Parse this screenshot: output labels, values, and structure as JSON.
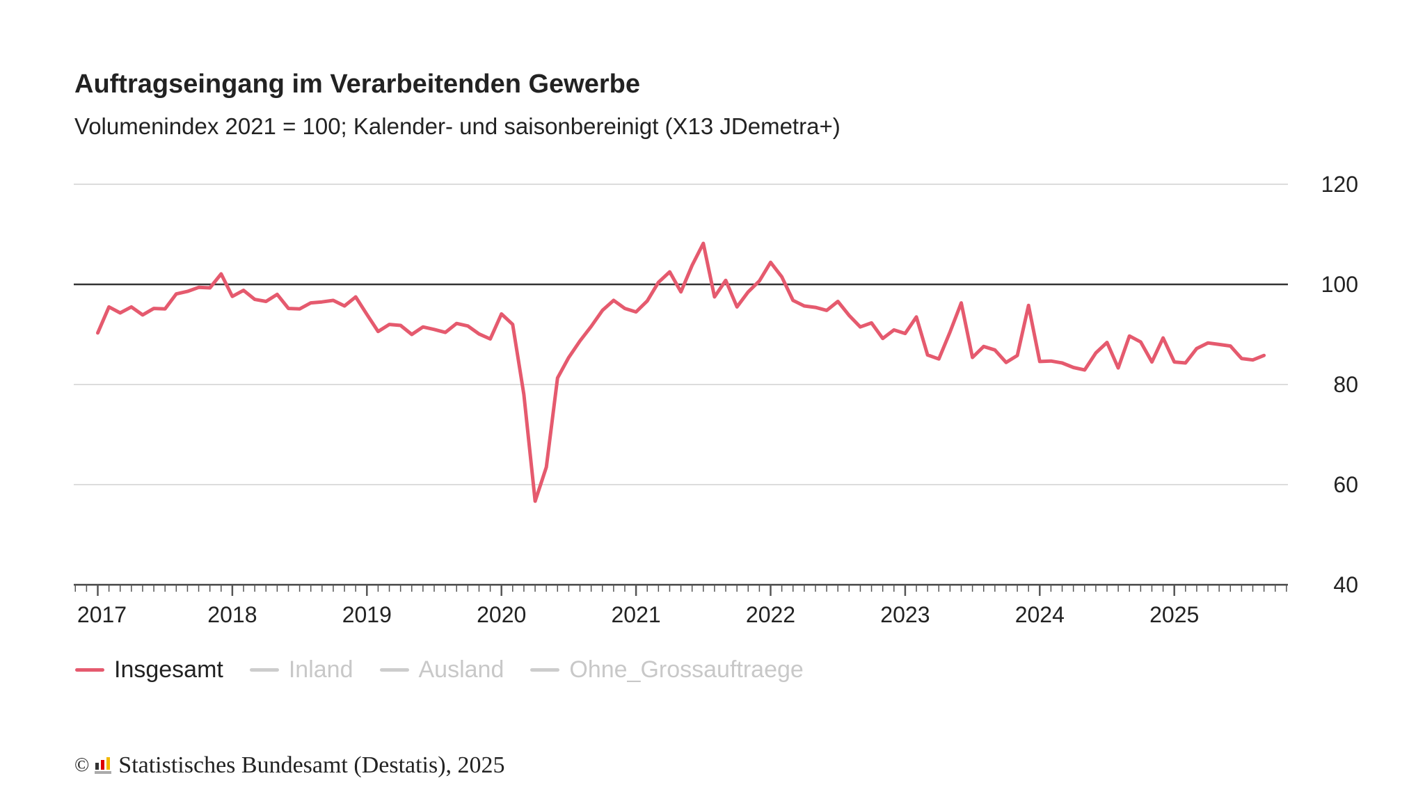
{
  "chart_data": {
    "type": "line",
    "title": "Auftragseingang im Verarbeitenden Gewerbe",
    "subtitle": "Volumenindex 2021 = 100; Kalender- und saisonbereinigt (X13 JDemetra+)",
    "xlabel": "",
    "ylabel": "",
    "ylim": [
      40,
      120
    ],
    "yticks": [
      "120",
      "100",
      "80",
      "60",
      "40"
    ],
    "y_axis_position": "right",
    "xticks": [
      "2017",
      "2018",
      "2019",
      "2020",
      "2021",
      "2022",
      "2023",
      "2024",
      "2025"
    ],
    "x_start": "2017-01",
    "x_frequency": "monthly",
    "reference_line": 100,
    "grid": true,
    "legend_position": "bottom-left",
    "series": [
      {
        "name": "Insgesamt",
        "color": "#e55a6e",
        "active": true,
        "values": [
          90.3,
          95.5,
          94.3,
          95.5,
          93.9,
          95.2,
          95.1,
          98.1,
          98.6,
          99.4,
          99.3,
          102.1,
          97.6,
          98.8,
          97.0,
          96.6,
          98.0,
          95.2,
          95.1,
          96.3,
          96.5,
          96.8,
          95.7,
          97.5,
          94.0,
          90.6,
          92.0,
          91.8,
          90.0,
          91.5,
          91.0,
          90.4,
          92.2,
          91.7,
          90.1,
          89.1,
          94.1,
          92.0,
          78.0,
          56.7,
          63.5,
          81.3,
          85.4,
          88.7,
          91.6,
          94.8,
          96.8,
          95.2,
          94.5,
          96.7,
          100.4,
          102.5,
          98.5,
          103.8,
          108.2,
          97.5,
          100.8,
          95.5,
          98.5,
          100.7,
          104.4,
          101.5,
          96.8,
          95.7,
          95.4,
          94.8,
          96.6,
          93.8,
          91.5,
          92.3,
          89.2,
          90.9,
          90.2,
          93.5,
          85.9,
          85.1,
          90.5,
          96.3,
          85.4,
          87.6,
          86.9,
          84.4,
          85.8,
          95.8,
          84.6,
          84.7,
          84.3,
          83.4,
          82.9,
          86.3,
          88.4,
          83.3,
          89.7,
          88.5,
          84.5,
          89.3,
          84.5,
          84.3,
          87.2,
          88.3,
          88.0,
          87.7,
          85.2,
          84.9,
          85.8
        ]
      },
      {
        "name": "Inland",
        "color": "#cccccc",
        "active": false
      },
      {
        "name": "Ausland",
        "color": "#cccccc",
        "active": false
      },
      {
        "name": "Ohne_Grossauftraege",
        "color": "#cccccc",
        "active": false
      }
    ]
  },
  "footer": {
    "copyright": "©",
    "source": "Statistisches Bundesamt (Destatis), 2025"
  }
}
